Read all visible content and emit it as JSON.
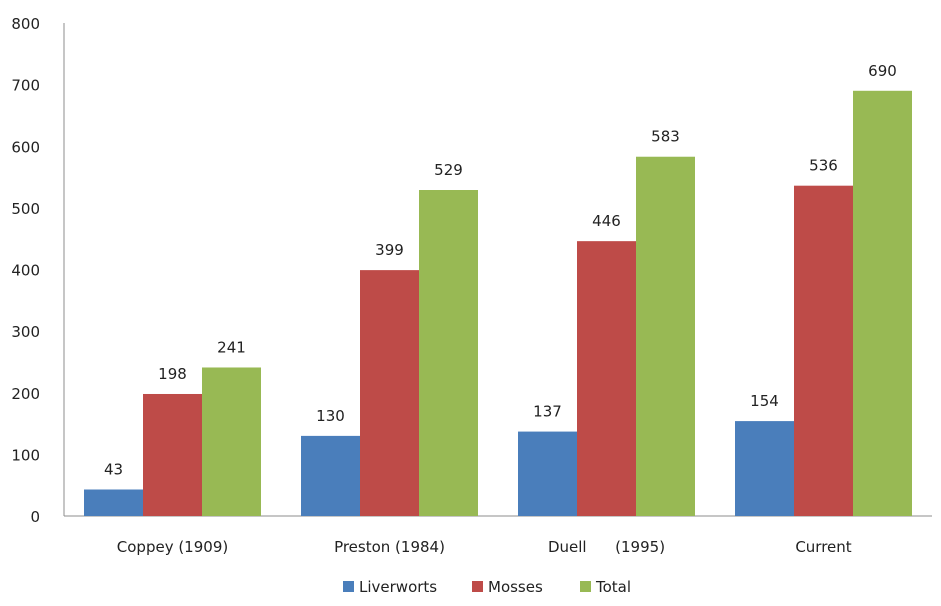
{
  "chart_data": {
    "type": "bar",
    "title": "",
    "xlabel": "",
    "ylabel": "",
    "categories": [
      "Coppey (1909)",
      "Preston (1984)",
      "Duell      (1995)",
      "Current"
    ],
    "series": [
      {
        "name": "Liverworts",
        "values": [
          43,
          130,
          137,
          154
        ],
        "color": "#4a7ebb"
      },
      {
        "name": "Mosses",
        "values": [
          198,
          399,
          446,
          536
        ],
        "color": "#be4b48"
      },
      {
        "name": "Total",
        "values": [
          241,
          529,
          583,
          690
        ],
        "color": "#98b954"
      }
    ],
    "ylim": [
      0,
      800
    ],
    "yticks": [
      0,
      100,
      200,
      300,
      400,
      500,
      600,
      700,
      800
    ],
    "data_labels": true,
    "grid": false,
    "legend_position": "bottom"
  }
}
